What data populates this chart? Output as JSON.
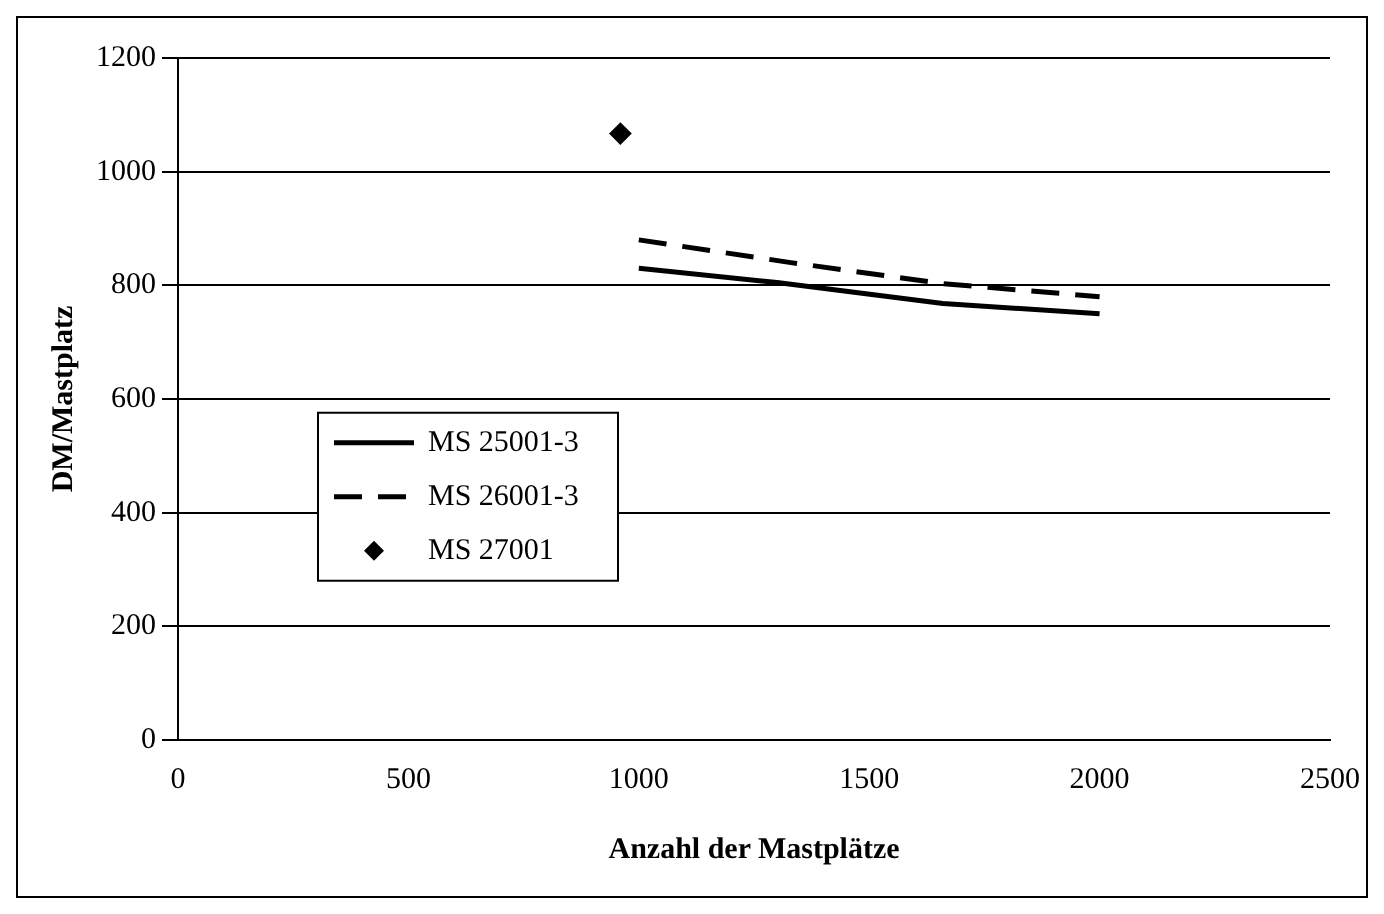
{
  "chart_data": {
    "type": "line",
    "xlabel": "Anzahl der Mastplätze",
    "ylabel": "DM/Mastplatz",
    "xlim": [
      0,
      2500
    ],
    "xticks": [
      0,
      500,
      1000,
      1500,
      2000,
      2500
    ],
    "ylim": [
      0,
      1200
    ],
    "yticks": [
      0,
      200,
      400,
      600,
      800,
      1000,
      1200
    ],
    "grid": "y",
    "legend": "left",
    "series": [
      {
        "name": "MS 25001-3",
        "color": "#000000",
        "type": "line",
        "line_style": "solid",
        "marker": "none",
        "x": [
          1000,
          1300,
          1660,
          2000
        ],
        "values": [
          830,
          805,
          768,
          750
        ]
      },
      {
        "name": "MS 26001-3",
        "color": "#000000",
        "type": "line",
        "line_style": "dashed",
        "marker": "none",
        "x": [
          1000,
          1330,
          1660,
          2000
        ],
        "values": [
          880,
          840,
          803,
          780
        ]
      },
      {
        "name": "MS 27001",
        "color": "#000000",
        "type": "scatter",
        "marker": "diamond",
        "x": [
          960
        ],
        "values": [
          1067
        ]
      }
    ]
  }
}
